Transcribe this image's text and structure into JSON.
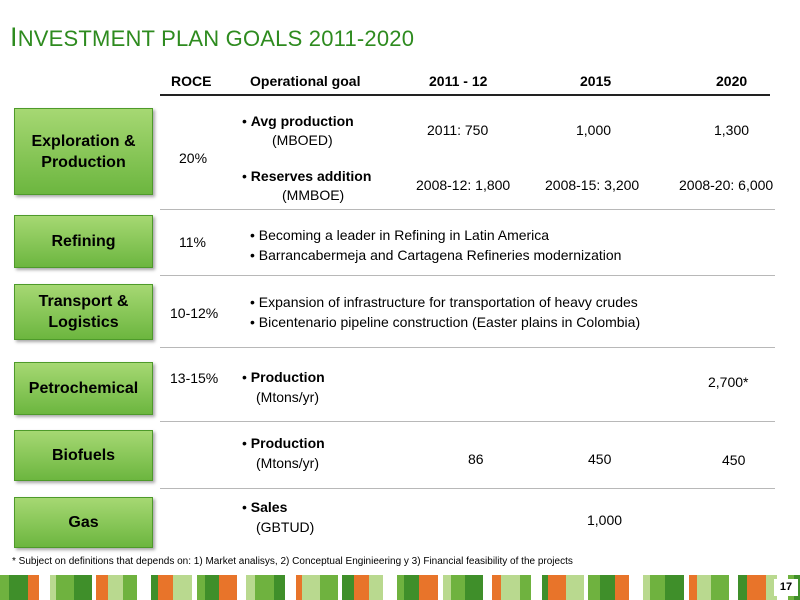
{
  "title": {
    "initial": "I",
    "rest": "NVESTMENT PLAN GOALS 2011-2020"
  },
  "headers": {
    "roce": "ROCE",
    "goal": "Operational goal",
    "y2011": "2011 - 12",
    "y2015": "2015",
    "y2020": "2020"
  },
  "rows": {
    "exploration": {
      "label": "Exploration & Production",
      "roce": "20%",
      "goal1": {
        "bold": "Avg production",
        "unit": "(MBOED)",
        "v2011": "2011:  750",
        "v2015": "1,000",
        "v2020": "1,300"
      },
      "goal2": {
        "bold": "Reserves addition",
        "unit": "(MMBOE)",
        "v2011": "2008-12: 1,800",
        "v2015": "2008-15: 3,200",
        "v2020": "2008-20: 6,000"
      }
    },
    "refining": {
      "label": "Refining",
      "roce": "11%",
      "bullets": [
        "Becoming a leader in Refining in Latin America",
        "Barrancabermeja and Cartagena Refineries modernization"
      ]
    },
    "transport": {
      "label": "Transport & Logistics",
      "roce": "10-12%",
      "bullets": [
        "Expansion of infrastructure for transportation of heavy crudes",
        "Bicentenario pipeline construction (Easter plains in Colombia)"
      ]
    },
    "petrochemical": {
      "label": "Petrochemical",
      "roce": "13-15%",
      "goal": {
        "bold": "Production",
        "unit": "(Mtons/yr)",
        "v2020": "2,700*"
      }
    },
    "biofuels": {
      "label": "Biofuels",
      "goal": {
        "bold": "Production",
        "unit": "(Mtons/yr)",
        "v2011": "86",
        "v2015": "450",
        "v2020": "450"
      }
    },
    "gas": {
      "label": "Gas",
      "goal": {
        "bold": "Sales",
        "unit": "(GBTUD)",
        "v2015": "1,000"
      }
    }
  },
  "footnote": "* Subject on definitions that depends on: 1) Market analisys, 2) Conceptual Enginieering  y  3) Financial feasibility of the projects",
  "page_number": "17",
  "colors": {
    "title": "#2e8b1f",
    "box_light": "#a6d873",
    "box_dark": "#6cb63f",
    "stripe_palette": [
      "#6fb23f",
      "#b9d98f",
      "#e8742a",
      "#3f8f2a"
    ]
  }
}
